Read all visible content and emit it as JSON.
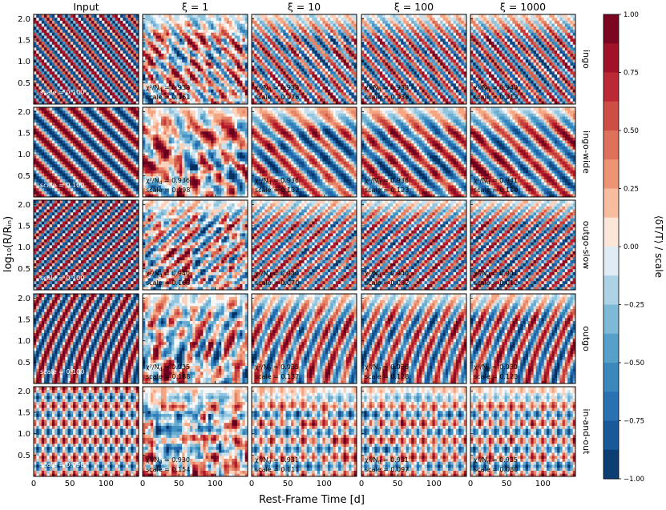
{
  "chart_data": {
    "type": "heatmap",
    "column_titles": [
      "Input",
      "ξ = 1",
      "ξ = 10",
      "ξ = 100",
      "ξ = 1000"
    ],
    "row_labels": [
      "ingo",
      "ingo-wide",
      "outgo-slow",
      "outgo",
      "in-and-out"
    ],
    "xlabel": "Rest-Frame Time [d]",
    "ylabel": "log₁₀(R/Rᵢₙ)",
    "colorbar_label": "⟨δT/T⟩ / scale",
    "xlim": [
      0,
      145
    ],
    "ylim": [
      0.0,
      2.1
    ],
    "x_ticks": [
      0,
      50,
      100
    ],
    "x_tick_labels": [
      "0",
      "50",
      "100"
    ],
    "y_ticks": [
      0.5,
      1.0,
      1.5,
      2.0
    ],
    "y_tick_labels": [
      "0.5",
      "1.0",
      "1.5",
      "2.0"
    ],
    "colorbar_range": [
      -1.0,
      1.0
    ],
    "colorbar_ticks": [
      1.0,
      0.75,
      0.5,
      0.25,
      0.0,
      -0.25,
      -0.5,
      -0.75,
      -1.0
    ],
    "colorbar_tick_labels": [
      "1.00",
      "0.75",
      "0.50",
      "0.25",
      "0.00",
      "−0.25",
      "−0.50",
      "−0.75",
      "−1.00"
    ],
    "colormap": "RdBu_r",
    "colors": {
      "strong_red": "#67001f",
      "red": "#d6604d",
      "neutral": "#f7f7f7",
      "blue": "#4393c3",
      "strong_blue": "#053061"
    },
    "chi_label": "χ²/N",
    "chi_subscript": "d",
    "scale_prefix": "scale = ",
    "chi_prefix": " = ",
    "rows": [
      {
        "name": "ingo",
        "input_scale": "0.100",
        "chi2": [
          "0.938",
          "0.938",
          "0.938",
          "0.940"
        ],
        "scale": [
          "0.161",
          "0.076",
          "0.036",
          "0.013"
        ]
      },
      {
        "name": "ingo-wide",
        "input_scale": "0.100",
        "chi2": [
          "0.936",
          "0.936",
          "0.936",
          "0.941"
        ],
        "scale": [
          "0.198",
          "0.132",
          "0.123",
          "0.110"
        ]
      },
      {
        "name": "outgo-slow",
        "input_scale": "0.100",
        "chi2": [
          "0.940",
          "0.940",
          "0.940",
          "0.941"
        ],
        "scale": [
          "0.163",
          "0.070",
          "0.032",
          "0.012"
        ]
      },
      {
        "name": "outgo",
        "input_scale": "0.100",
        "chi2": [
          "0.935",
          "0.935",
          "0.936",
          "0.939"
        ],
        "scale": [
          "0.188",
          "0.137",
          "0.128",
          "0.123"
        ]
      },
      {
        "name": "in-and-out",
        "input_scale": "0.098",
        "chi2": [
          "0.930",
          "0.931",
          "0.931",
          "0.935"
        ],
        "scale": [
          "0.154",
          "0.111",
          "0.097",
          "0.080"
        ]
      }
    ]
  }
}
